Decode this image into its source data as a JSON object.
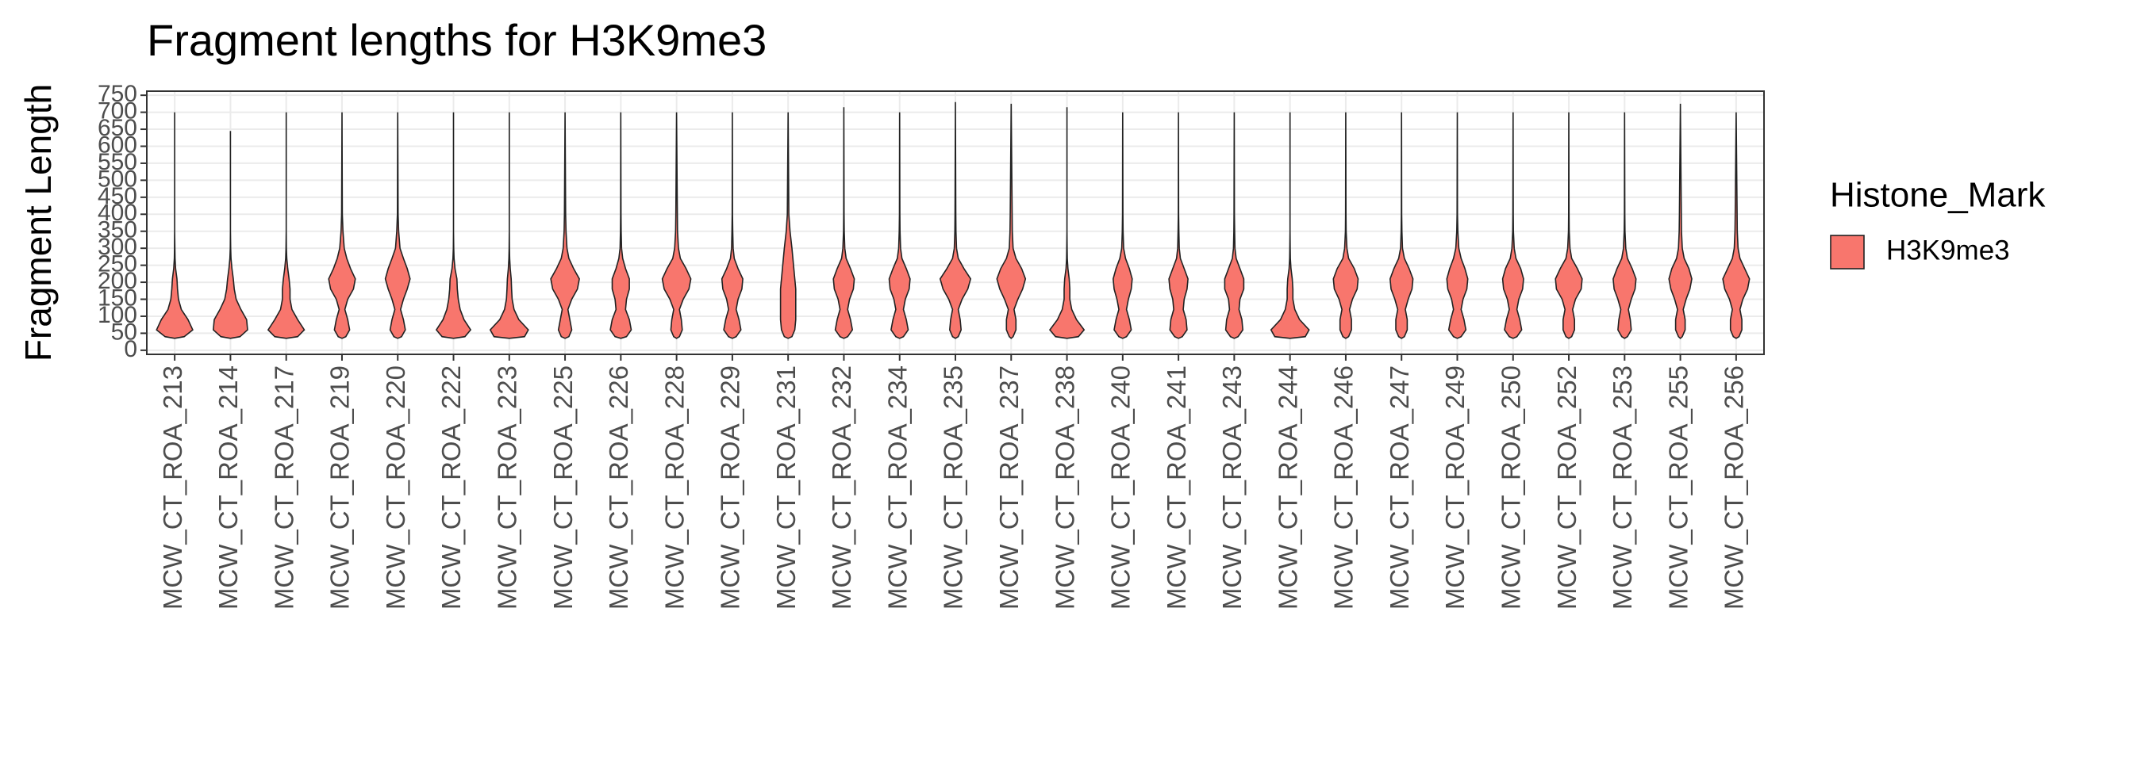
{
  "chart_data": {
    "type": "violin",
    "title": "Fragment lengths for H3K9me3",
    "y_label": "Fragment Length",
    "categories": [
      "MCW_CT_ROA_213",
      "MCW_CT_ROA_214",
      "MCW_CT_ROA_217",
      "MCW_CT_ROA_219",
      "MCW_CT_ROA_220",
      "MCW_CT_ROA_222",
      "MCW_CT_ROA_223",
      "MCW_CT_ROA_225",
      "MCW_CT_ROA_226",
      "MCW_CT_ROA_228",
      "MCW_CT_ROA_229",
      "MCW_CT_ROA_231",
      "MCW_CT_ROA_232",
      "MCW_CT_ROA_234",
      "MCW_CT_ROA_235",
      "MCW_CT_ROA_237",
      "MCW_CT_ROA_238",
      "MCW_CT_ROA_240",
      "MCW_CT_ROA_241",
      "MCW_CT_ROA_243",
      "MCW_CT_ROA_244",
      "MCW_CT_ROA_246",
      "MCW_CT_ROA_247",
      "MCW_CT_ROA_249",
      "MCW_CT_ROA_250",
      "MCW_CT_ROA_252",
      "MCW_CT_ROA_253",
      "MCW_CT_ROA_255",
      "MCW_CT_ROA_256"
    ],
    "density_at": [
      40,
      60,
      90,
      120,
      150,
      180,
      210,
      240,
      270,
      300,
      350,
      400
    ],
    "series": [
      {
        "name": "H3K9me3",
        "color": "#f8766d",
        "min": [
          35,
          35,
          35,
          35,
          35,
          35,
          35,
          35,
          35,
          35,
          35,
          35,
          35,
          35,
          35,
          35,
          35,
          35,
          35,
          35,
          35,
          35,
          35,
          35,
          35,
          35,
          35,
          35,
          35
        ],
        "max": [
          700,
          645,
          700,
          700,
          700,
          700,
          700,
          700,
          700,
          700,
          700,
          700,
          715,
          700,
          730,
          725,
          715,
          700,
          700,
          700,
          700,
          700,
          700,
          700,
          700,
          700,
          700,
          725,
          700
        ],
        "density": [
          [
            0.5,
            0.95,
            0.7,
            0.35,
            0.2,
            0.15,
            0.12,
            0.05,
            0.02,
            0.01,
            0,
            0
          ],
          [
            0.5,
            0.9,
            0.85,
            0.55,
            0.3,
            0.2,
            0.15,
            0.08,
            0.03,
            0.01,
            0,
            0
          ],
          [
            0.6,
            0.95,
            0.6,
            0.3,
            0.2,
            0.2,
            0.15,
            0.08,
            0.03,
            0.01,
            0,
            0
          ],
          [
            0.2,
            0.4,
            0.3,
            0.15,
            0.3,
            0.6,
            0.7,
            0.45,
            0.25,
            0.12,
            0.05,
            0.02
          ],
          [
            0.2,
            0.4,
            0.3,
            0.15,
            0.3,
            0.5,
            0.65,
            0.5,
            0.3,
            0.12,
            0.05,
            0.02
          ],
          [
            0.6,
            0.9,
            0.55,
            0.35,
            0.25,
            0.2,
            0.18,
            0.08,
            0.03,
            0.01,
            0,
            0
          ],
          [
            0.8,
            1.0,
            0.5,
            0.25,
            0.15,
            0.12,
            0.1,
            0.05,
            0.02,
            0.01,
            0,
            0
          ],
          [
            0.2,
            0.35,
            0.25,
            0.15,
            0.35,
            0.65,
            0.75,
            0.45,
            0.2,
            0.1,
            0.05,
            0.03
          ],
          [
            0.3,
            0.55,
            0.45,
            0.25,
            0.3,
            0.45,
            0.45,
            0.25,
            0.1,
            0.04,
            0.02,
            0.01
          ],
          [
            0.15,
            0.3,
            0.25,
            0.15,
            0.35,
            0.65,
            0.75,
            0.5,
            0.2,
            0.1,
            0.05,
            0.04
          ],
          [
            0.2,
            0.45,
            0.35,
            0.2,
            0.3,
            0.5,
            0.55,
            0.3,
            0.1,
            0.04,
            0.02,
            0.01
          ],
          [
            0.2,
            0.35,
            0.4,
            0.4,
            0.4,
            0.4,
            0.35,
            0.3,
            0.25,
            0.2,
            0.1,
            0.04
          ],
          [
            0.2,
            0.45,
            0.35,
            0.2,
            0.3,
            0.5,
            0.55,
            0.35,
            0.12,
            0.05,
            0.02,
            0.01
          ],
          [
            0.2,
            0.45,
            0.35,
            0.2,
            0.3,
            0.5,
            0.55,
            0.35,
            0.12,
            0.05,
            0.02,
            0.01
          ],
          [
            0.15,
            0.3,
            0.25,
            0.15,
            0.35,
            0.65,
            0.8,
            0.45,
            0.15,
            0.06,
            0.03,
            0.02
          ],
          [
            0.1,
            0.25,
            0.25,
            0.15,
            0.35,
            0.6,
            0.75,
            0.55,
            0.25,
            0.1,
            0.06,
            0.05
          ],
          [
            0.6,
            0.9,
            0.5,
            0.25,
            0.15,
            0.15,
            0.12,
            0.05,
            0.02,
            0.01,
            0,
            0
          ],
          [
            0.2,
            0.45,
            0.35,
            0.2,
            0.3,
            0.45,
            0.5,
            0.35,
            0.15,
            0.05,
            0.02,
            0.01
          ],
          [
            0.2,
            0.45,
            0.4,
            0.25,
            0.3,
            0.45,
            0.5,
            0.3,
            0.1,
            0.04,
            0.02,
            0.01
          ],
          [
            0.2,
            0.45,
            0.4,
            0.25,
            0.3,
            0.5,
            0.5,
            0.3,
            0.1,
            0.04,
            0.02,
            0.01
          ],
          [
            0.8,
            1.0,
            0.5,
            0.25,
            0.15,
            0.15,
            0.12,
            0.05,
            0.02,
            0.01,
            0,
            0
          ],
          [
            0.15,
            0.3,
            0.3,
            0.2,
            0.35,
            0.6,
            0.65,
            0.45,
            0.15,
            0.06,
            0.02,
            0.01
          ],
          [
            0.15,
            0.3,
            0.3,
            0.2,
            0.35,
            0.55,
            0.6,
            0.4,
            0.15,
            0.05,
            0.02,
            0.01
          ],
          [
            0.2,
            0.45,
            0.35,
            0.2,
            0.3,
            0.5,
            0.55,
            0.4,
            0.2,
            0.08,
            0.03,
            0.01
          ],
          [
            0.2,
            0.45,
            0.35,
            0.2,
            0.3,
            0.5,
            0.55,
            0.4,
            0.15,
            0.06,
            0.02,
            0.01
          ],
          [
            0.15,
            0.3,
            0.3,
            0.2,
            0.35,
            0.65,
            0.7,
            0.45,
            0.15,
            0.06,
            0.02,
            0.01
          ],
          [
            0.15,
            0.35,
            0.3,
            0.2,
            0.35,
            0.55,
            0.6,
            0.4,
            0.15,
            0.06,
            0.02,
            0.01
          ],
          [
            0.1,
            0.25,
            0.25,
            0.15,
            0.3,
            0.5,
            0.6,
            0.45,
            0.2,
            0.1,
            0.06,
            0.05
          ],
          [
            0.15,
            0.3,
            0.3,
            0.2,
            0.35,
            0.6,
            0.7,
            0.45,
            0.2,
            0.1,
            0.06,
            0.05
          ]
        ]
      }
    ],
    "ylim": [
      -12,
      762
    ],
    "yticks": [
      0,
      50,
      100,
      150,
      200,
      250,
      300,
      350,
      400,
      450,
      500,
      550,
      600,
      650,
      700,
      750
    ],
    "grid": true,
    "legend_title": "Histone_Mark",
    "legend_position": "right"
  }
}
